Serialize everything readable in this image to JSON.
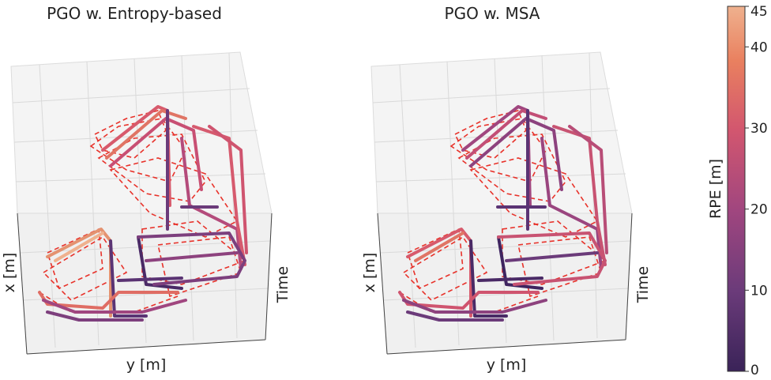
{
  "chart_data": [
    {
      "type": "line",
      "title": "PGO w. Entropy-based",
      "xlabel": "y [m]",
      "ylabel": "x [m]",
      "zlabel": "Time",
      "series": [
        {
          "color_by": "RPE [m]",
          "style": "solid trajectory"
        },
        {
          "color": "#e8322a",
          "style": "dashed reference"
        }
      ]
    },
    {
      "type": "line",
      "title": "PGO w. MSA",
      "xlabel": "y [m]",
      "ylabel": "x [m]",
      "zlabel": "Time",
      "series": [
        {
          "color_by": "RPE [m]",
          "style": "solid trajectory"
        },
        {
          "color": "#e8322a",
          "style": "dashed reference"
        }
      ]
    }
  ],
  "colorbar": {
    "label": "RPE [m]",
    "range": [
      0,
      45
    ],
    "ticks": [
      0,
      10,
      20,
      30,
      40,
      45
    ],
    "colors": [
      "#3a2358",
      "#6b3b7a",
      "#a0467f",
      "#d2566f",
      "#e9805f",
      "#efb18e"
    ]
  }
}
